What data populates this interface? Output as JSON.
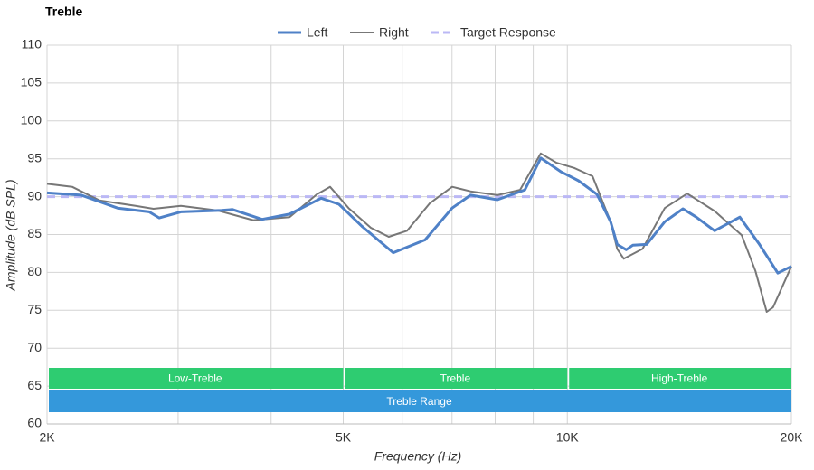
{
  "chart_data": {
    "type": "line",
    "title": "Treble",
    "x_label": "Frequency (Hz)",
    "y_label": "Amplitude (dB SPL)",
    "x_scale": "log",
    "xlim": [
      2000,
      20000
    ],
    "xticks": [
      {
        "value": 2000,
        "label": "2K"
      },
      {
        "value": 5000,
        "label": "5K"
      },
      {
        "value": 10000,
        "label": "10K"
      },
      {
        "value": 20000,
        "label": "20K"
      }
    ],
    "x_minor_grid": [
      3000,
      4000,
      6000,
      7000,
      8000,
      9000
    ],
    "ylim": [
      60,
      110
    ],
    "yticks": [
      60,
      65,
      70,
      75,
      80,
      85,
      90,
      95,
      100,
      105,
      110
    ],
    "grid": true,
    "legend": "top",
    "series": [
      {
        "name": "Left",
        "color": "#4f81c7",
        "style": "solid",
        "width": 3,
        "x": [
          2000,
          2224,
          2488,
          2743,
          2830,
          3026,
          3431,
          3550,
          3890,
          4236,
          4670,
          4935,
          5296,
          5836,
          6441,
          7002,
          7411,
          8054,
          8770,
          9212,
          9800,
          10353,
          10962,
          11431,
          11668,
          12000,
          12250,
          12784,
          13520,
          14300,
          14900,
          15770,
          17050,
          18120,
          19180,
          20000
        ],
        "values": [
          90.5,
          90.2,
          88.5,
          88.0,
          87.2,
          88.0,
          88.2,
          88.3,
          87.0,
          87.7,
          89.8,
          89.0,
          86.1,
          82.6,
          84.3,
          88.5,
          90.2,
          89.6,
          90.9,
          95.1,
          93.3,
          92.1,
          90.3,
          86.7,
          83.7,
          83.0,
          83.6,
          83.7,
          86.7,
          88.4,
          87.3,
          85.5,
          87.3,
          83.7,
          79.9,
          80.8
        ]
      },
      {
        "name": "Right",
        "color": "#777777",
        "style": "solid",
        "width": 2,
        "x": [
          2000,
          2162,
          2353,
          2630,
          2780,
          3026,
          3381,
          3785,
          4236,
          4606,
          4800,
          5083,
          5446,
          5756,
          6092,
          6531,
          7002,
          7411,
          8054,
          8640,
          9212,
          9660,
          10210,
          10810,
          11431,
          11668,
          11910,
          12620,
          13520,
          14490,
          15770,
          17150,
          17890,
          18530,
          18900,
          20000
        ],
        "values": [
          91.7,
          91.3,
          89.5,
          88.8,
          88.4,
          88.8,
          88.2,
          86.9,
          87.3,
          90.3,
          91.3,
          88.5,
          85.9,
          84.7,
          85.5,
          89.1,
          91.3,
          90.7,
          90.2,
          90.9,
          95.7,
          94.5,
          93.8,
          92.7,
          86.7,
          83.1,
          81.8,
          83.1,
          88.5,
          90.4,
          88.1,
          84.9,
          80.2,
          74.8,
          75.4,
          80.8
        ]
      },
      {
        "name": "Target Response",
        "color": "#bbb8f5",
        "style": "dashed",
        "width": 3,
        "x": [
          2000,
          20000
        ],
        "values": [
          90,
          90
        ]
      }
    ],
    "bands": [
      {
        "label": "Low-Treble",
        "start": 2000,
        "end": 5000,
        "color": "#2ecc71"
      },
      {
        "label": "Treble",
        "start": 5000,
        "end": 10000,
        "color": "#2ecc71"
      },
      {
        "label": "High-Treble",
        "start": 10000,
        "end": 20000,
        "color": "#2ecc71"
      }
    ],
    "range_bar": {
      "label": "Treble Range",
      "start": 2000,
      "end": 20000,
      "color": "#3498db"
    }
  }
}
